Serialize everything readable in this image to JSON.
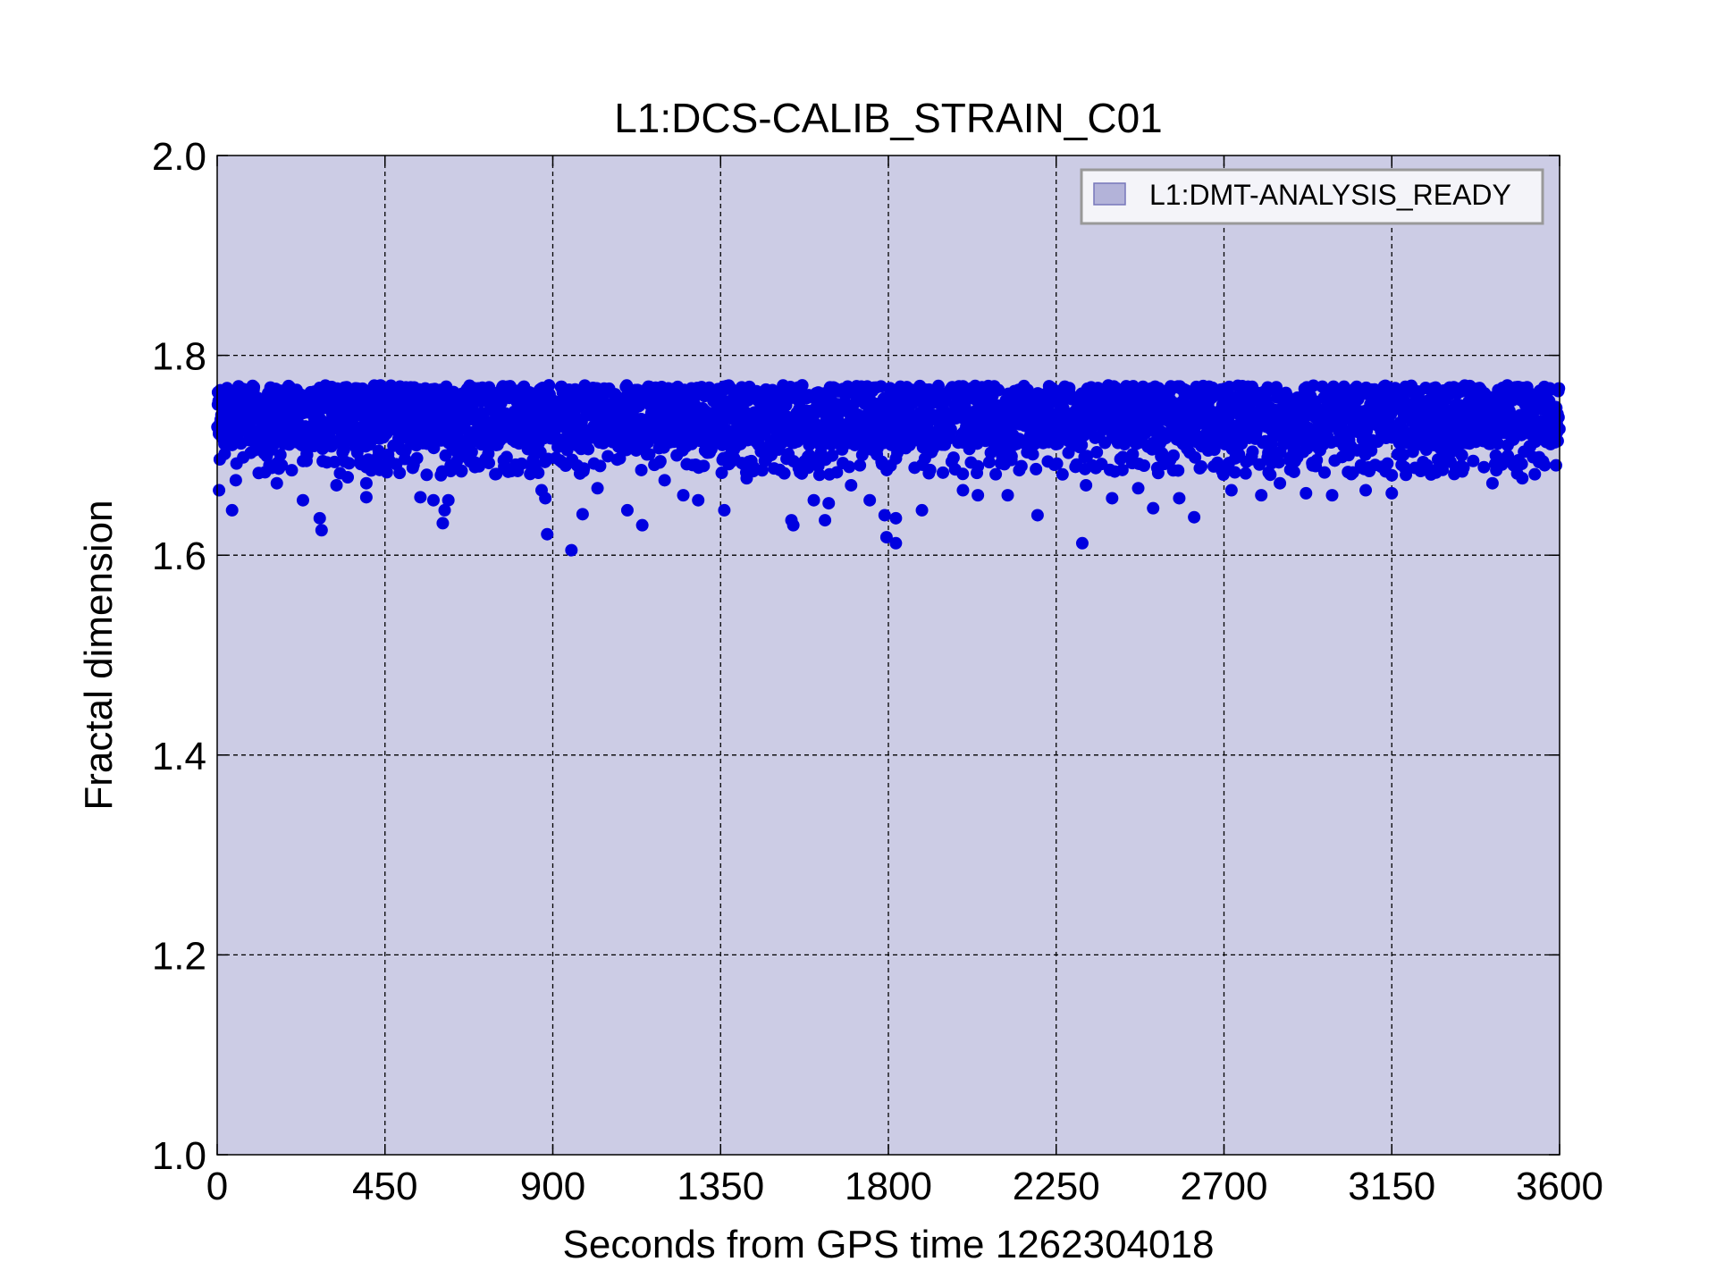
{
  "chart_data": {
    "type": "scatter",
    "title": "L1:DCS-CALIB_STRAIN_C01",
    "xlabel": "Seconds from GPS time 1262304018",
    "ylabel": "Fractal dimension",
    "xlim": [
      0,
      3600
    ],
    "ylim": [
      1.0,
      2.0
    ],
    "xticks": [
      "0",
      "450",
      "900",
      "1350",
      "1800",
      "2250",
      "2700",
      "3150",
      "3600"
    ],
    "yticks": [
      "1.0",
      "1.2",
      "1.4",
      "1.6",
      "1.8",
      "2.0"
    ],
    "grid": true,
    "legend": {
      "label": "L1:DMT-ANALYSIS_READY",
      "placement": "top-right"
    },
    "colors": {
      "points": "#0000e0",
      "shaded_span": "#cccce5",
      "legend_patch": "#b3b3d9"
    },
    "shaded_span_x": [
      0,
      3600
    ],
    "band": {
      "upper": 1.77,
      "lower": 1.71
    },
    "notable_points": [
      {
        "x": 5,
        "y": 1.665
      },
      {
        "x": 40,
        "y": 1.645
      },
      {
        "x": 50,
        "y": 1.675
      },
      {
        "x": 140,
        "y": 1.69
      },
      {
        "x": 160,
        "y": 1.672
      },
      {
        "x": 200,
        "y": 1.685
      },
      {
        "x": 230,
        "y": 1.655
      },
      {
        "x": 275,
        "y": 1.637
      },
      {
        "x": 280,
        "y": 1.625
      },
      {
        "x": 320,
        "y": 1.67
      },
      {
        "x": 350,
        "y": 1.678
      },
      {
        "x": 400,
        "y": 1.658
      },
      {
        "x": 400,
        "y": 1.672
      },
      {
        "x": 455,
        "y": 1.683
      },
      {
        "x": 545,
        "y": 1.658
      },
      {
        "x": 580,
        "y": 1.655
      },
      {
        "x": 600,
        "y": 1.68
      },
      {
        "x": 605,
        "y": 1.632
      },
      {
        "x": 610,
        "y": 1.645
      },
      {
        "x": 620,
        "y": 1.655
      },
      {
        "x": 690,
        "y": 1.693
      },
      {
        "x": 800,
        "y": 1.685
      },
      {
        "x": 870,
        "y": 1.665
      },
      {
        "x": 880,
        "y": 1.657
      },
      {
        "x": 885,
        "y": 1.621
      },
      {
        "x": 950,
        "y": 1.605
      },
      {
        "x": 980,
        "y": 1.641
      },
      {
        "x": 1020,
        "y": 1.667
      },
      {
        "x": 1100,
        "y": 1.645
      },
      {
        "x": 1140,
        "y": 1.63
      },
      {
        "x": 1200,
        "y": 1.675
      },
      {
        "x": 1250,
        "y": 1.66
      },
      {
        "x": 1290,
        "y": 1.655
      },
      {
        "x": 1360,
        "y": 1.645
      },
      {
        "x": 1420,
        "y": 1.677
      },
      {
        "x": 1540,
        "y": 1.635
      },
      {
        "x": 1545,
        "y": 1.63
      },
      {
        "x": 1600,
        "y": 1.655
      },
      {
        "x": 1630,
        "y": 1.635
      },
      {
        "x": 1640,
        "y": 1.652
      },
      {
        "x": 1700,
        "y": 1.67
      },
      {
        "x": 1750,
        "y": 1.655
      },
      {
        "x": 1790,
        "y": 1.64
      },
      {
        "x": 1795,
        "y": 1.618
      },
      {
        "x": 1820,
        "y": 1.612
      },
      {
        "x": 1820,
        "y": 1.637
      },
      {
        "x": 1890,
        "y": 1.645
      },
      {
        "x": 2000,
        "y": 1.665
      },
      {
        "x": 2040,
        "y": 1.66
      },
      {
        "x": 2120,
        "y": 1.66
      },
      {
        "x": 2200,
        "y": 1.64
      },
      {
        "x": 2320,
        "y": 1.612
      },
      {
        "x": 2330,
        "y": 1.67
      },
      {
        "x": 2400,
        "y": 1.657
      },
      {
        "x": 2470,
        "y": 1.667
      },
      {
        "x": 2510,
        "y": 1.647
      },
      {
        "x": 2580,
        "y": 1.657
      },
      {
        "x": 2620,
        "y": 1.638
      },
      {
        "x": 2720,
        "y": 1.665
      },
      {
        "x": 2800,
        "y": 1.66
      },
      {
        "x": 2850,
        "y": 1.672
      },
      {
        "x": 2920,
        "y": 1.662
      },
      {
        "x": 2990,
        "y": 1.66
      },
      {
        "x": 3080,
        "y": 1.665
      },
      {
        "x": 3150,
        "y": 1.662
      },
      {
        "x": 3150,
        "y": 1.68
      },
      {
        "x": 3280,
        "y": 1.707
      },
      {
        "x": 3420,
        "y": 1.672
      },
      {
        "x": 3500,
        "y": 1.677
      },
      {
        "x": 3560,
        "y": 1.69
      }
    ]
  }
}
